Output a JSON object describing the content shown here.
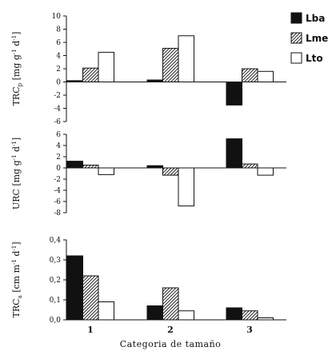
{
  "legend": [
    {
      "name": "Lba",
      "fill": "black"
    },
    {
      "name": "Lme",
      "fill": "hatch"
    },
    {
      "name": "Lto",
      "fill": "white"
    }
  ],
  "xlabel": "Categoria de tamaño",
  "chart_data": [
    {
      "type": "bar",
      "categories": [
        "1",
        "2",
        "3"
      ],
      "ylabel": "TRCp [mg g-1 d-1]",
      "ylabel_parts": {
        "main": "TRC",
        "sub": "p",
        "units": "[mg g",
        "sup1": "-1",
        "mid": " d",
        "sup2": "-1",
        "end": "]"
      },
      "ylim": [
        -6,
        10
      ],
      "yticks": [
        "10",
        "8",
        "6",
        "4",
        "2",
        "0",
        "-2",
        "-4",
        "-6"
      ],
      "yticks_values": [
        10,
        8,
        6,
        4,
        2,
        0,
        -2,
        -4,
        -6
      ],
      "series": [
        {
          "name": "Lba",
          "values": [
            0.2,
            0.3,
            -3.5
          ]
        },
        {
          "name": "Lme",
          "values": [
            2.1,
            5.1,
            2.0
          ]
        },
        {
          "name": "Lto",
          "values": [
            4.5,
            7.0,
            1.6
          ]
        }
      ]
    },
    {
      "type": "bar",
      "categories": [
        "1",
        "2",
        "3"
      ],
      "ylabel": "URC [mg g-1 d-1]",
      "ylabel_parts": {
        "main": "URC",
        "sub": "",
        "units": "[mg g",
        "sup1": "-1",
        "mid": " d",
        "sup2": "-1",
        "end": "]"
      },
      "ylim": [
        -8,
        6
      ],
      "yticks": [
        "6",
        "4",
        "2",
        "0",
        "-2",
        "-4",
        "-6",
        "-8"
      ],
      "yticks_values": [
        6,
        4,
        2,
        0,
        -2,
        -4,
        -6,
        -8
      ],
      "series": [
        {
          "name": "Lba",
          "values": [
            1.2,
            0.4,
            5.2
          ]
        },
        {
          "name": "Lme",
          "values": [
            0.5,
            -1.3,
            0.7
          ]
        },
        {
          "name": "Lto",
          "values": [
            -1.2,
            -6.8,
            -1.3
          ]
        }
      ]
    },
    {
      "type": "bar",
      "categories": [
        "1",
        "2",
        "3"
      ],
      "ylabel": "TRCa [cm m-1 d-1]",
      "ylabel_parts": {
        "main": "TRC",
        "sub": "a",
        "units": "[cm m",
        "sup1": "-1",
        "mid": " d",
        "sup2": "-1",
        "end": "]"
      },
      "ylim": [
        0,
        0.4
      ],
      "yticks": [
        "0,4",
        "0,3",
        "0,2",
        "0,1",
        "0,0"
      ],
      "yticks_values": [
        0.4,
        0.3,
        0.2,
        0.1,
        0.0
      ],
      "series": [
        {
          "name": "Lba",
          "values": [
            0.32,
            0.07,
            0.06
          ]
        },
        {
          "name": "Lme",
          "values": [
            0.22,
            0.16,
            0.045
          ]
        },
        {
          "name": "Lto",
          "values": [
            0.09,
            0.045,
            0.01
          ]
        }
      ]
    }
  ]
}
